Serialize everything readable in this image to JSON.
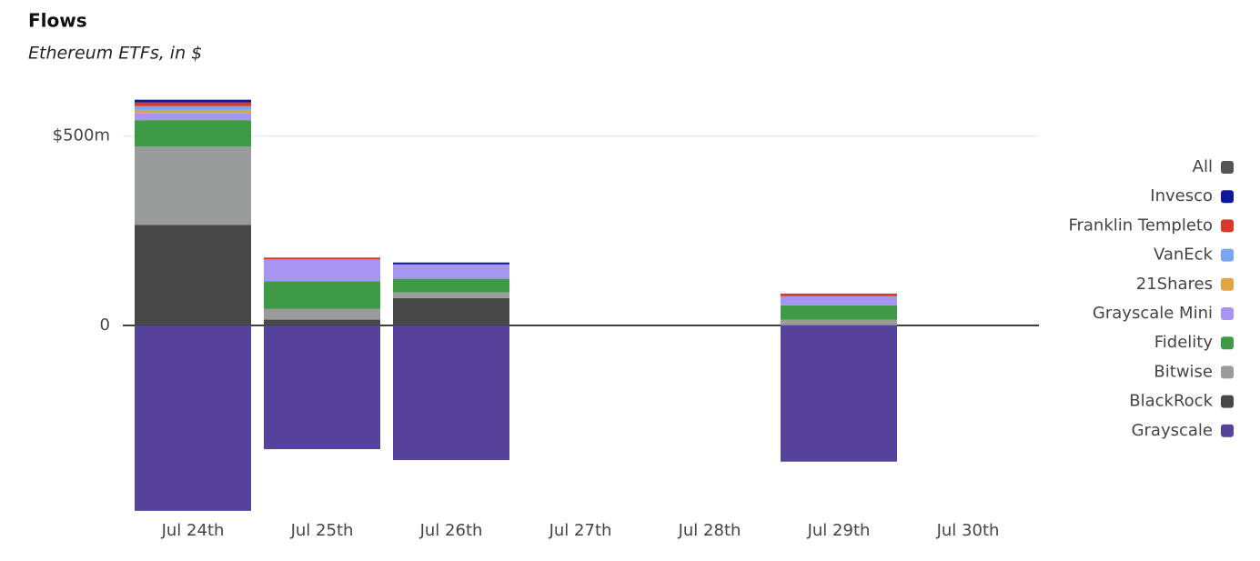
{
  "chart_data": {
    "type": "stacked-bar",
    "title": "Flows",
    "subtitle": "Ethereum ETFs, in $",
    "categories": [
      "Jul 24th",
      "Jul 25th",
      "Jul 26th",
      "Jul 27th",
      "Jul 28th",
      "Jul 29th",
      "Jul 30th"
    ],
    "series": [
      {
        "name": "All",
        "color": "#555555",
        "values": [
          null,
          null,
          null,
          null,
          null,
          null,
          null
        ]
      },
      {
        "name": "Invesco",
        "color": "#10189a",
        "values": [
          7,
          0,
          5,
          null,
          null,
          0,
          null
        ]
      },
      {
        "name": "Franklin Templeto",
        "color": "#d63a2a",
        "values": [
          10,
          5,
          0,
          null,
          null,
          7,
          null
        ]
      },
      {
        "name": "VanEck",
        "color": "#7aa6ef",
        "values": [
          10,
          0,
          0,
          null,
          null,
          0,
          null
        ]
      },
      {
        "name": "21Shares",
        "color": "#e0a540",
        "values": [
          8,
          0,
          0,
          null,
          null,
          0,
          null
        ]
      },
      {
        "name": "Grayscale Mini",
        "color": "#a795f2",
        "values": [
          19,
          58,
          38,
          null,
          null,
          24,
          null
        ]
      },
      {
        "name": "Fidelity",
        "color": "#3f9a48",
        "values": [
          70,
          72,
          36,
          null,
          null,
          38,
          null
        ]
      },
      {
        "name": "Bitwise",
        "color": "#999c9a",
        "values": [
          207,
          29,
          15,
          null,
          null,
          15,
          null
        ]
      },
      {
        "name": "BlackRock",
        "color": "#484848",
        "values": [
          265,
          15,
          72,
          null,
          null,
          0,
          null
        ]
      },
      {
        "name": "Grayscale",
        "color": "#55439b",
        "values": [
          -490,
          -327,
          -356,
          null,
          null,
          -360,
          null
        ]
      }
    ],
    "ylim": [
      -500,
      600
    ],
    "yticks": [
      0,
      {
        "value": 500,
        "label": "$500m"
      }
    ],
    "grid": true
  }
}
